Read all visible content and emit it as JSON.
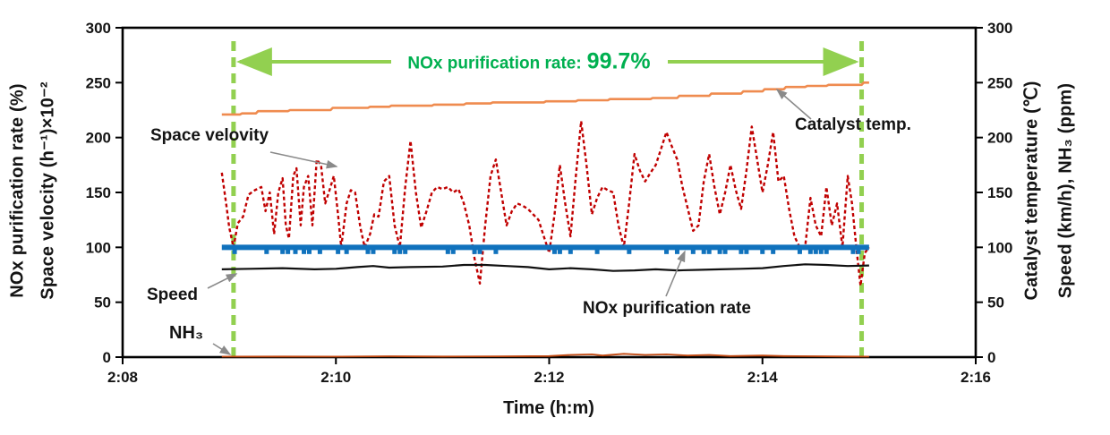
{
  "annotation": {
    "rate_label": "NOx purification rate:",
    "rate_value": "99.7%"
  },
  "axes": {
    "left": {
      "title_line1": "NOx purification rate (%)",
      "title_line2": "Space velocity (h⁻¹)×10⁻²",
      "ticks": [
        0,
        50,
        100,
        150,
        200,
        250,
        300
      ]
    },
    "right": {
      "title_line1": "Catalyst temperature (℃)",
      "title_line2": "Speed (km/h), NH₃ (ppm)",
      "ticks": [
        0,
        50,
        100,
        150,
        200,
        250,
        300
      ]
    },
    "x": {
      "title": "Time (h:m)",
      "tick_labels": [
        "2:08",
        "2:10",
        "2:12",
        "2:14",
        "2:16"
      ]
    }
  },
  "series_labels": {
    "space_velocity": "Space velovity",
    "catalyst_temp": "Catalyst temp.",
    "speed": "Speed",
    "nh3": "NH₃",
    "nox_rate": "NOx purification rate"
  },
  "colors": {
    "space_velocity": "#C00000",
    "catalyst_temp": "#EF8B4F",
    "speed": "#111111",
    "nh3": "#C34A12",
    "nox_rate": "#1072BD",
    "highlight_green": "#92D050",
    "annotation_green": "#00B050",
    "arrow_gray": "#8a8a8a",
    "axis_black": "#000000"
  },
  "chart_data": {
    "type": "line",
    "xlabel": "Time (h:m)",
    "x_unit": "minutes after 2:08",
    "x_range_minutes": [
      0,
      8
    ],
    "x_tick_minutes": [
      0,
      2,
      4,
      6,
      8
    ],
    "x_tick_labels": [
      "2:08",
      "2:10",
      "2:12",
      "2:14",
      "2:16"
    ],
    "y_left_range": [
      0,
      300
    ],
    "y_right_range": [
      0,
      300
    ],
    "y_ticks": [
      0,
      50,
      100,
      150,
      200,
      250,
      300
    ],
    "grid": false,
    "legend": "inline arrow annotations",
    "highlight_window": {
      "start_min": 1.04,
      "end_min": 6.93,
      "label": "NOx purification rate: 99.7%"
    },
    "series": [
      {
        "name": "Space velocity",
        "axis": "left",
        "style": "dashed",
        "points": [
          [
            0.93,
            168
          ],
          [
            0.97,
            140
          ],
          [
            1.0,
            118
          ],
          [
            1.04,
            100
          ],
          [
            1.08,
            122
          ],
          [
            1.13,
            128
          ],
          [
            1.18,
            148
          ],
          [
            1.24,
            152
          ],
          [
            1.3,
            155
          ],
          [
            1.34,
            133
          ],
          [
            1.38,
            150
          ],
          [
            1.42,
            112
          ],
          [
            1.46,
            150
          ],
          [
            1.5,
            163
          ],
          [
            1.53,
            120
          ],
          [
            1.56,
            108
          ],
          [
            1.6,
            165
          ],
          [
            1.63,
            172
          ],
          [
            1.67,
            120
          ],
          [
            1.7,
            155
          ],
          [
            1.74,
            165
          ],
          [
            1.78,
            120
          ],
          [
            1.82,
            180
          ],
          [
            1.86,
            175
          ],
          [
            1.9,
            140
          ],
          [
            1.94,
            152
          ],
          [
            1.98,
            165
          ],
          [
            2.02,
            130
          ],
          [
            2.05,
            100
          ],
          [
            2.1,
            140
          ],
          [
            2.14,
            152
          ],
          [
            2.18,
            150
          ],
          [
            2.23,
            118
          ],
          [
            2.27,
            100
          ],
          [
            2.32,
            112
          ],
          [
            2.36,
            130
          ],
          [
            2.4,
            128
          ],
          [
            2.45,
            160
          ],
          [
            2.5,
            165
          ],
          [
            2.55,
            120
          ],
          [
            2.6,
            100
          ],
          [
            2.65,
            155
          ],
          [
            2.7,
            197
          ],
          [
            2.75,
            150
          ],
          [
            2.8,
            118
          ],
          [
            2.85,
            133
          ],
          [
            2.9,
            150
          ],
          [
            2.95,
            155
          ],
          [
            3.0,
            153
          ],
          [
            3.05,
            155
          ],
          [
            3.1,
            150
          ],
          [
            3.15,
            153
          ],
          [
            3.2,
            140
          ],
          [
            3.25,
            120
          ],
          [
            3.3,
            90
          ],
          [
            3.35,
            67
          ],
          [
            3.4,
            120
          ],
          [
            3.45,
            165
          ],
          [
            3.5,
            180
          ],
          [
            3.55,
            150
          ],
          [
            3.6,
            120
          ],
          [
            3.65,
            133
          ],
          [
            3.7,
            140
          ],
          [
            3.75,
            138
          ],
          [
            3.8,
            135
          ],
          [
            3.85,
            130
          ],
          [
            3.9,
            125
          ],
          [
            3.95,
            110
          ],
          [
            4.0,
            95
          ],
          [
            4.05,
            130
          ],
          [
            4.1,
            175
          ],
          [
            4.15,
            140
          ],
          [
            4.2,
            110
          ],
          [
            4.25,
            165
          ],
          [
            4.3,
            215
          ],
          [
            4.35,
            175
          ],
          [
            4.4,
            130
          ],
          [
            4.45,
            145
          ],
          [
            4.5,
            155
          ],
          [
            4.55,
            152
          ],
          [
            4.6,
            150
          ],
          [
            4.65,
            120
          ],
          [
            4.7,
            100
          ],
          [
            4.75,
            140
          ],
          [
            4.8,
            185
          ],
          [
            4.85,
            170
          ],
          [
            4.9,
            160
          ],
          [
            4.95,
            168
          ],
          [
            5.0,
            175
          ],
          [
            5.05,
            190
          ],
          [
            5.1,
            205
          ],
          [
            5.15,
            192
          ],
          [
            5.2,
            180
          ],
          [
            5.25,
            155
          ],
          [
            5.3,
            135
          ],
          [
            5.35,
            115
          ],
          [
            5.4,
            120
          ],
          [
            5.45,
            160
          ],
          [
            5.5,
            185
          ],
          [
            5.55,
            155
          ],
          [
            5.6,
            130
          ],
          [
            5.65,
            150
          ],
          [
            5.7,
            175
          ],
          [
            5.75,
            152
          ],
          [
            5.8,
            135
          ],
          [
            5.85,
            170
          ],
          [
            5.9,
            210
          ],
          [
            5.95,
            180
          ],
          [
            6.0,
            150
          ],
          [
            6.05,
            175
          ],
          [
            6.1,
            205
          ],
          [
            6.15,
            160
          ],
          [
            6.2,
            165
          ],
          [
            6.25,
            135
          ],
          [
            6.3,
            110
          ],
          [
            6.35,
            100
          ],
          [
            6.4,
            100
          ],
          [
            6.45,
            145
          ],
          [
            6.5,
            120
          ],
          [
            6.55,
            110
          ],
          [
            6.6,
            155
          ],
          [
            6.65,
            120
          ],
          [
            6.7,
            140
          ],
          [
            6.75,
            100
          ],
          [
            6.8,
            165
          ],
          [
            6.84,
            140
          ],
          [
            6.88,
            100
          ],
          [
            6.92,
            65
          ],
          [
            6.96,
            95
          ],
          [
            7.0,
            100
          ]
        ]
      },
      {
        "name": "Catalyst temp.",
        "axis": "right",
        "style": "solid-step",
        "points": [
          [
            0.93,
            221
          ],
          [
            1.1,
            221
          ],
          [
            1.12,
            222
          ],
          [
            1.25,
            222
          ],
          [
            1.27,
            224
          ],
          [
            1.55,
            224
          ],
          [
            1.57,
            225
          ],
          [
            1.95,
            225
          ],
          [
            1.97,
            227
          ],
          [
            2.3,
            227
          ],
          [
            2.32,
            228
          ],
          [
            2.5,
            228
          ],
          [
            2.52,
            229
          ],
          [
            2.9,
            229
          ],
          [
            2.92,
            230
          ],
          [
            3.2,
            230
          ],
          [
            3.22,
            231
          ],
          [
            3.45,
            231
          ],
          [
            3.47,
            232
          ],
          [
            3.95,
            232
          ],
          [
            3.97,
            233
          ],
          [
            4.25,
            233
          ],
          [
            4.27,
            234
          ],
          [
            4.55,
            234
          ],
          [
            4.57,
            235
          ],
          [
            4.95,
            235
          ],
          [
            4.97,
            236
          ],
          [
            5.2,
            236
          ],
          [
            5.22,
            238
          ],
          [
            5.5,
            238
          ],
          [
            5.52,
            240
          ],
          [
            5.8,
            240
          ],
          [
            5.82,
            242
          ],
          [
            6.0,
            242
          ],
          [
            6.02,
            244
          ],
          [
            6.2,
            244
          ],
          [
            6.22,
            246
          ],
          [
            6.4,
            246
          ],
          [
            6.42,
            247
          ],
          [
            6.6,
            247
          ],
          [
            6.62,
            248
          ],
          [
            6.93,
            248
          ],
          [
            6.95,
            250
          ],
          [
            7.0,
            250
          ]
        ]
      },
      {
        "name": "Speed",
        "axis": "right",
        "style": "solid",
        "points": [
          [
            0.93,
            80
          ],
          [
            1.2,
            80.5
          ],
          [
            1.5,
            81
          ],
          [
            1.8,
            80
          ],
          [
            2.0,
            80.5
          ],
          [
            2.2,
            82
          ],
          [
            2.35,
            83
          ],
          [
            2.5,
            81.5
          ],
          [
            2.7,
            82
          ],
          [
            3.0,
            82.5
          ],
          [
            3.2,
            84
          ],
          [
            3.4,
            84
          ],
          [
            3.6,
            83
          ],
          [
            3.8,
            82
          ],
          [
            4.0,
            80
          ],
          [
            4.2,
            81
          ],
          [
            4.4,
            80
          ],
          [
            4.6,
            78.5
          ],
          [
            4.8,
            79
          ],
          [
            5.0,
            80
          ],
          [
            5.2,
            79
          ],
          [
            5.4,
            79.5
          ],
          [
            5.6,
            80
          ],
          [
            5.8,
            80.5
          ],
          [
            6.0,
            81
          ],
          [
            6.2,
            83
          ],
          [
            6.4,
            84.5
          ],
          [
            6.6,
            84
          ],
          [
            6.8,
            83
          ],
          [
            7.0,
            83.5
          ]
        ]
      },
      {
        "name": "NH₃",
        "axis": "right",
        "style": "solid",
        "points": [
          [
            0.93,
            0.5
          ],
          [
            1.5,
            0.6
          ],
          [
            2.0,
            0.5
          ],
          [
            2.5,
            0.8
          ],
          [
            3.0,
            0.6
          ],
          [
            3.5,
            0.7
          ],
          [
            4.0,
            1.0
          ],
          [
            4.2,
            2.0
          ],
          [
            4.4,
            2.5
          ],
          [
            4.5,
            1.5
          ],
          [
            4.7,
            3.0
          ],
          [
            4.9,
            2.0
          ],
          [
            5.1,
            2.5
          ],
          [
            5.3,
            1.5
          ],
          [
            5.5,
            2.0
          ],
          [
            5.7,
            1.0
          ],
          [
            6.0,
            1.5
          ],
          [
            6.2,
            1.0
          ],
          [
            6.5,
            0.8
          ],
          [
            6.8,
            0.6
          ],
          [
            7.0,
            0.5
          ]
        ]
      },
      {
        "name": "NOx purification rate",
        "axis": "left",
        "style": "thick-constant",
        "constant_value": 100,
        "stated_rate_percent": 99.7,
        "start_min": 0.93,
        "end_min": 7.0,
        "dip_value": 96,
        "dip_times": [
          1.05,
          1.35,
          1.5,
          1.55,
          1.62,
          1.7,
          1.75,
          1.85,
          2.02,
          2.1,
          2.3,
          2.35,
          2.55,
          2.6,
          2.65,
          3.05,
          3.1,
          3.3,
          3.35,
          3.5,
          4.05,
          4.1,
          4.2,
          4.45,
          4.75,
          5.1,
          5.2,
          5.35,
          5.45,
          5.5,
          5.6,
          5.65,
          5.8,
          5.85,
          6.0,
          6.1,
          6.35,
          6.45,
          6.5,
          6.55,
          6.6,
          6.85,
          6.9
        ]
      }
    ]
  }
}
